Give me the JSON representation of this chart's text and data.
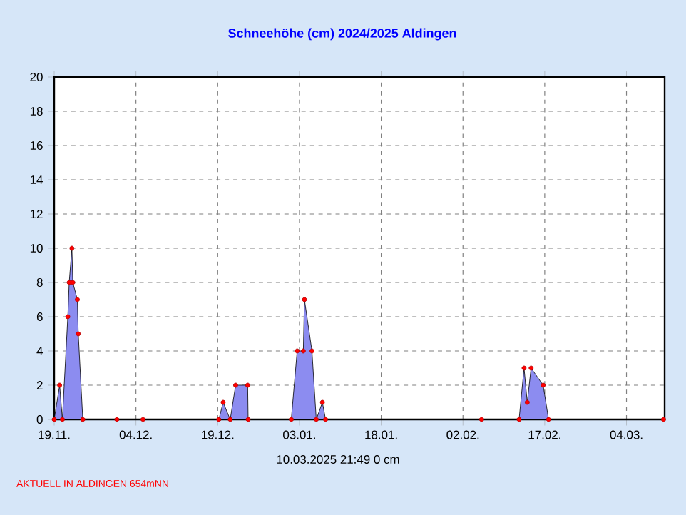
{
  "chart_data": {
    "type": "area",
    "title": "Schneehöhe (cm)  2024/2025      Aldingen",
    "x": [
      "2024-11-19T00:00",
      "2024-11-20T00:00",
      "2024-11-20T12:00",
      "2024-11-21T12:00",
      "2024-11-21T18:00",
      "2024-11-22T06:00",
      "2024-11-22T10:00",
      "2024-11-23T06:00",
      "2024-11-23T10:00",
      "2024-11-24T06:00",
      "2024-11-30T12:00",
      "2024-12-05T07:00",
      "2024-12-19T05:00",
      "2024-12-20T00:00",
      "2024-12-21T07:00",
      "2024-12-22T07:00",
      "2024-12-24T12:00",
      "2024-12-24T14:00",
      "2025-01-01T12:00",
      "2025-01-02T14:00",
      "2025-01-03T17:00",
      "2025-01-03T22:00",
      "2025-01-05T07:00",
      "2025-01-06T02:00",
      "2025-01-07T05:00",
      "2025-01-07T19:00",
      "2025-02-05T10:00",
      "2025-02-12T07:00",
      "2025-02-13T05:00",
      "2025-02-13T19:00",
      "2025-02-14T12:00",
      "2025-02-16T17:00",
      "2025-02-17T17:00",
      "2025-03-10T19:00"
    ],
    "values": [
      0,
      2,
      0,
      6,
      8,
      10,
      8,
      7,
      5,
      0,
      0,
      0,
      0,
      1,
      0,
      2,
      2,
      0,
      0,
      4,
      4,
      7,
      4,
      0,
      1,
      0,
      0,
      0,
      3,
      1,
      3,
      2,
      0,
      0
    ],
    "color": "#8c8cf0",
    "marker": "circle",
    "line_style": "solid",
    "grid": true,
    "xlim": [
      "2024-11-19T00:00",
      "2025-03-11T00:00"
    ],
    "xticks": [
      {
        "value": "2024-11-19",
        "label": "19.11."
      },
      {
        "value": "2024-12-04",
        "label": "04.12."
      },
      {
        "value": "2024-12-19",
        "label": "19.12."
      },
      {
        "value": "2025-01-03",
        "label": "03.01."
      },
      {
        "value": "2025-01-18",
        "label": "18.01."
      },
      {
        "value": "2025-02-02",
        "label": "02.02."
      },
      {
        "value": "2025-02-17",
        "label": "17.02."
      },
      {
        "value": "2025-03-04",
        "label": "04.03."
      }
    ],
    "ylim": [
      0,
      20
    ],
    "yticks": [
      0,
      2,
      4,
      6,
      8,
      10,
      12,
      14,
      16,
      18,
      20
    ],
    "annotations": [
      "10.03.2025  21:49    0 cm",
      "AKTUELL IN ALDINGEN 654mNN"
    ]
  }
}
